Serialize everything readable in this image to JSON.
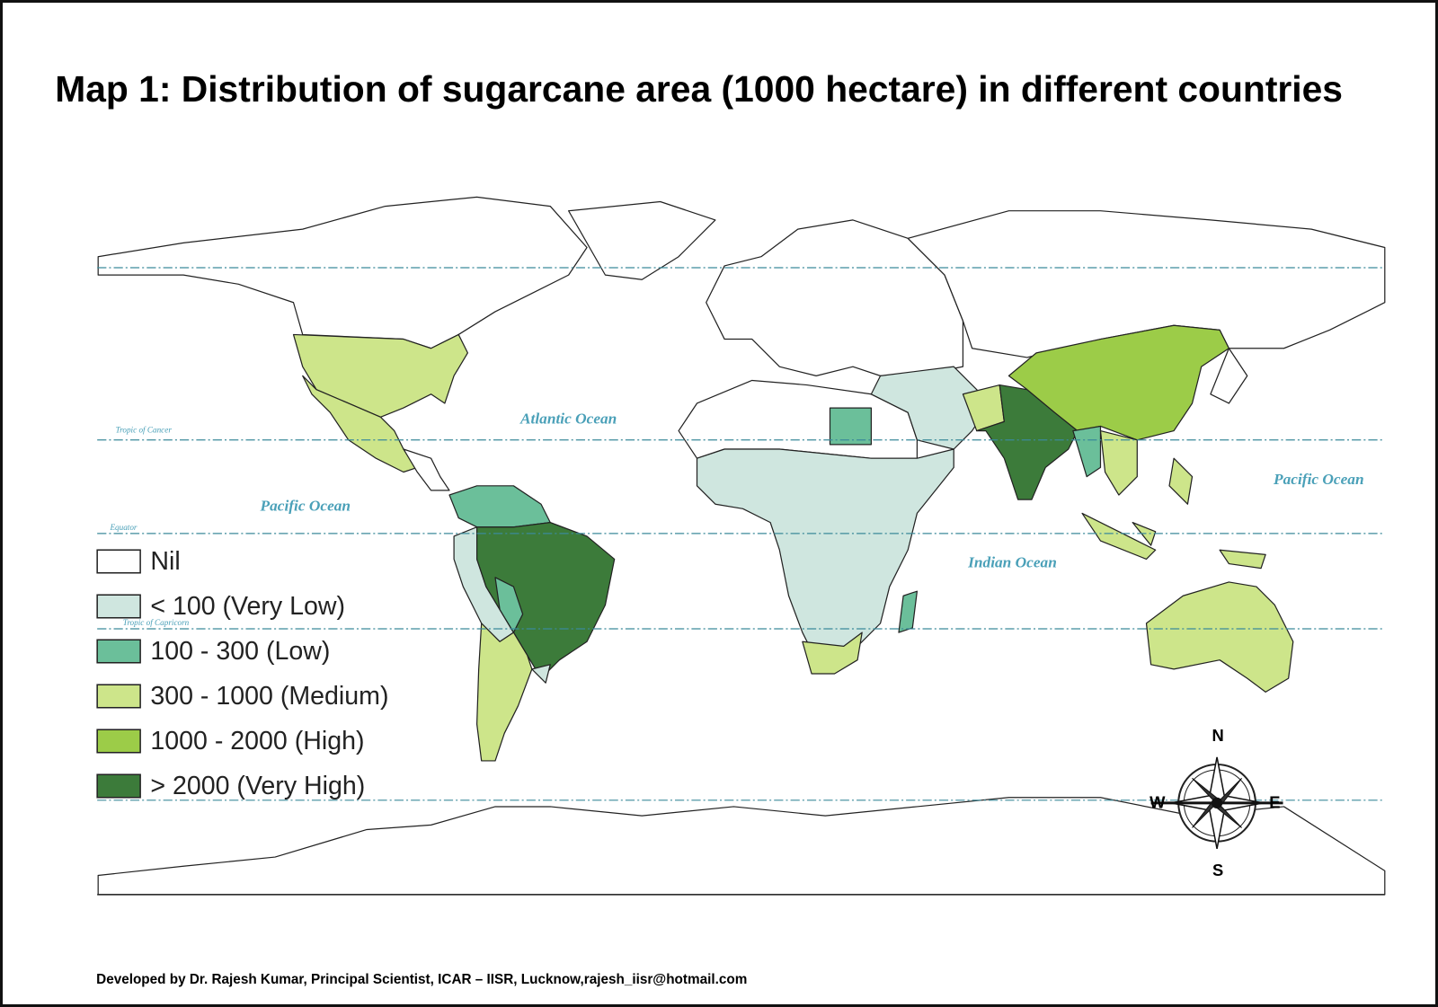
{
  "title": "Map 1: Distribution of sugarcane area (1000 hectare) in  different countries",
  "legend": {
    "items": [
      {
        "label": "Nil",
        "color": "#ffffff"
      },
      {
        "label": "< 100 (Very Low)",
        "color": "#cfe6df"
      },
      {
        "label": "100 - 300 (Low)",
        "color": "#6bbf9a"
      },
      {
        "label": "300 - 1000 (Medium)",
        "color": "#cde58a"
      },
      {
        "label": "1000 - 2000 (High)",
        "color": "#9ccc48"
      },
      {
        "label": "> 2000 (Very High)",
        "color": "#3c7b3a"
      }
    ]
  },
  "oceans": [
    "Atlantic Ocean",
    "Pacific Ocean",
    "Indian Ocean",
    "Pacific Ocean"
  ],
  "latitude_lines": [
    "Tropic of Cancer",
    "Equator",
    "Tropic of Capricorn"
  ],
  "compass": {
    "north": "N",
    "south": "S",
    "east": "E",
    "west": "W"
  },
  "footer": "Developed by Dr. Rajesh Kumar, Principal Scientist, ICAR – IISR, Lucknow,rajesh_iisr@hotmail.com"
}
